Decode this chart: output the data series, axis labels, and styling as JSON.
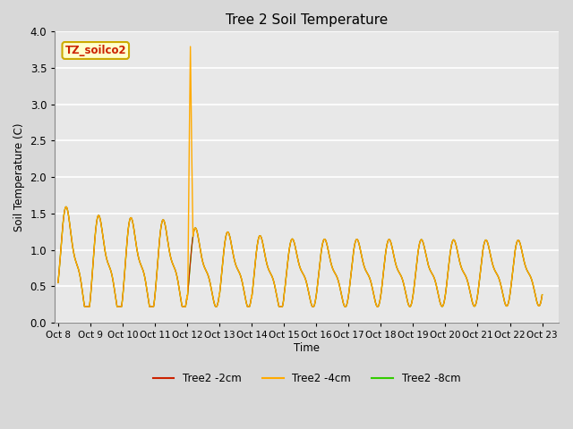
{
  "title": "Tree 2 Soil Temperature",
  "ylabel": "Soil Temperature (C)",
  "xlabel": "Time",
  "ylim": [
    0.0,
    4.0
  ],
  "yticks": [
    0.0,
    0.5,
    1.0,
    1.5,
    2.0,
    2.5,
    3.0,
    3.5,
    4.0
  ],
  "xtick_labels": [
    "Oct 8",
    "Oct 9",
    "Oct 10",
    "Oct 11",
    "Oct 12",
    "Oct 13",
    "Oct 14",
    "Oct 15",
    "Oct 16",
    "Oct 17",
    "Oct 18",
    "Oct 19",
    "Oct 20",
    "Oct 21",
    "Oct 22",
    "Oct 23"
  ],
  "fig_bg_color": "#d8d8d8",
  "plot_bg_color": "#e8e8e8",
  "grid_color": "#ffffff",
  "color_2cm": "#cc2200",
  "color_4cm": "#ffaa00",
  "color_8cm": "#33cc00",
  "label_box_facecolor": "#ffffcc",
  "label_box_edgecolor": "#ccaa00",
  "label_text": "TZ_soilco2",
  "label_text_color": "#cc2200",
  "legend_labels": [
    "Tree2 -2cm",
    "Tree2 -4cm",
    "Tree2 -8cm"
  ],
  "spike_peak": 3.82,
  "n_days": 15
}
